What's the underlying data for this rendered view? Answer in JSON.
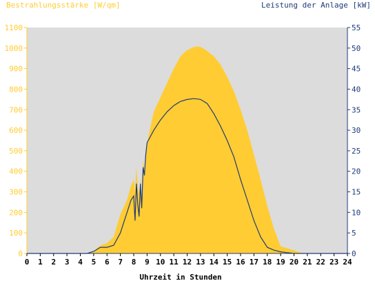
{
  "chart_data": {
    "type": "area",
    "title_left": "Bestrahlungsstärke [W/qm]",
    "title_right": "Leistung der Anlage [kW]",
    "xlabel": "Uhrzeit in Stunden",
    "x_ticks": [
      "0",
      "1",
      "2",
      "3",
      "4",
      "5",
      "6",
      "7",
      "8",
      "9",
      "10",
      "11",
      "12",
      "13",
      "14",
      "15",
      "16",
      "17",
      "18",
      "19",
      "20",
      "21",
      "22",
      "23",
      "24"
    ],
    "y_left_ticks": [
      "0",
      "100",
      "200",
      "300",
      "400",
      "500",
      "600",
      "700",
      "800",
      "900",
      "1000",
      "1100"
    ],
    "y_right_ticks": [
      "0",
      "5",
      "10",
      "15",
      "20",
      "25",
      "30",
      "35",
      "40",
      "45",
      "50",
      "55"
    ],
    "xlim": [
      0,
      24
    ],
    "ylim_left": [
      0,
      1100
    ],
    "ylim_right": [
      0,
      55
    ],
    "grid": false,
    "colors": {
      "irradiance": "#ffcc33",
      "power": "#1f3a78",
      "plot_bg": "#dcdcdc"
    },
    "series": [
      {
        "name": "Bestrahlungsstärke",
        "axis": "left",
        "x": [
          0,
          4.5,
          5.0,
          5.3,
          5.7,
          6.0,
          6.5,
          7.0,
          7.5,
          7.8,
          8.0,
          8.1,
          8.2,
          8.3,
          8.4,
          8.5,
          8.6,
          8.7,
          8.8,
          8.9,
          9.0,
          9.2,
          9.5,
          10.0,
          10.5,
          11.0,
          11.5,
          12.0,
          12.5,
          12.8,
          13.0,
          13.3,
          13.5,
          14.0,
          14.5,
          15.0,
          15.5,
          16.0,
          16.5,
          17.0,
          17.5,
          18.0,
          18.5,
          19.0,
          19.5,
          20.0,
          20.3,
          20.6,
          21.0,
          24.0
        ],
        "y": [
          0,
          0,
          8,
          30,
          45,
          50,
          80,
          190,
          260,
          330,
          360,
          300,
          420,
          330,
          290,
          370,
          210,
          460,
          400,
          500,
          540,
          600,
          690,
          760,
          830,
          900,
          960,
          990,
          1005,
          1008,
          1005,
          995,
          985,
          960,
          920,
          860,
          790,
          700,
          600,
          480,
          360,
          230,
          120,
          35,
          25,
          15,
          8,
          3,
          0,
          0
        ]
      },
      {
        "name": "Leistung der Anlage",
        "axis": "right",
        "x": [
          0,
          4.5,
          5.0,
          5.5,
          6.0,
          6.5,
          7.0,
          7.5,
          7.8,
          8.0,
          8.1,
          8.2,
          8.3,
          8.4,
          8.5,
          8.6,
          8.7,
          8.8,
          8.9,
          9.0,
          9.5,
          10.0,
          10.5,
          11.0,
          11.5,
          12.0,
          12.5,
          12.8,
          13.0,
          13.5,
          14.0,
          14.5,
          15.0,
          15.5,
          16.0,
          16.5,
          17.0,
          17.5,
          18.0,
          18.5,
          19.0,
          19.5,
          20.0,
          20.5,
          21.0,
          24.0
        ],
        "y": [
          0,
          0,
          0.5,
          1.5,
          1.5,
          2,
          5,
          10,
          13,
          14,
          8,
          17,
          12,
          9,
          17,
          11,
          21,
          19,
          24,
          27,
          30,
          32.5,
          34.5,
          36,
          37,
          37.5,
          37.7,
          37.6,
          37.5,
          36.5,
          34,
          31,
          27.5,
          23.5,
          18,
          13,
          8,
          4,
          1.5,
          0.8,
          0.4,
          0.2,
          0,
          0,
          0,
          0
        ]
      }
    ]
  }
}
